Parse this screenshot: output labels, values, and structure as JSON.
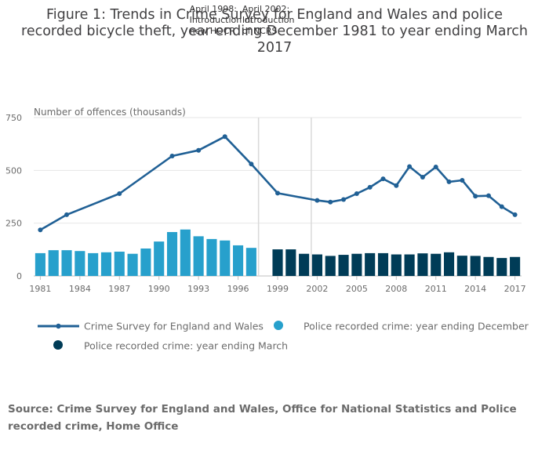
{
  "title_lines": [
    "Figure 1: Trends in Crime Survey for England and Wales and police",
    "recorded bicycle theft, year ending December 1981 to year ending March",
    "2017"
  ],
  "annotations": [
    {
      "year": 1998,
      "lines": [
        "April 1998:",
        "Introduction of",
        "new HOCR"
      ]
    },
    {
      "year": 2002,
      "lines": [
        "April 2002:",
        "Introduction",
        "of NCRS"
      ]
    }
  ],
  "source_text": "Source: Crime Survey for England and Wales, Office for National Statistics and Police recorded crime, Home Office",
  "colors": {
    "csew": "#206095",
    "december": "#27a0cc",
    "march": "#003c57",
    "grid": "#e6e6e6",
    "vline": "#d9d9d9"
  },
  "chart_data": {
    "type": "bar",
    "title": "Figure 1: Trends in Crime Survey for England and Wales and police recorded bicycle theft, year ending December 1981 to year ending March 2017",
    "ylabel": "Number of offences (thousands)",
    "ylim": [
      0,
      750
    ],
    "yticks": [
      0,
      250,
      500,
      750
    ],
    "xlim": [
      1981,
      2017
    ],
    "xticks": [
      1981,
      1984,
      1987,
      1990,
      1993,
      1996,
      1999,
      2002,
      2005,
      2008,
      2011,
      2014,
      2017
    ],
    "legend_position": "bottom",
    "series": [
      {
        "name": "Crime Survey for England and Wales",
        "kind": "line",
        "x": [
          1981,
          1983,
          1987,
          1991,
          1993,
          1995,
          1997,
          1999,
          2002,
          2003,
          2004,
          2005,
          2006,
          2007,
          2008,
          2009,
          2010,
          2011,
          2012,
          2013,
          2014,
          2015,
          2016,
          2017
        ],
        "values": [
          218,
          290,
          390,
          568,
          595,
          660,
          530,
          392,
          358,
          350,
          362,
          390,
          420,
          460,
          428,
          518,
          468,
          516,
          446,
          453,
          378,
          380,
          328,
          290
        ]
      },
      {
        "name": "Police recorded crime: year ending December",
        "kind": "bar",
        "x": [
          1981,
          1982,
          1983,
          1984,
          1985,
          1986,
          1987,
          1988,
          1989,
          1990,
          1991,
          1992,
          1993,
          1994,
          1995,
          1996,
          1997
        ],
        "values": [
          108,
          122,
          122,
          118,
          108,
          112,
          115,
          105,
          130,
          163,
          208,
          220,
          188,
          175,
          168,
          145,
          133
        ]
      },
      {
        "name": "Police recorded crime: year ending March",
        "kind": "bar",
        "x": [
          1999,
          2000,
          2001,
          2002,
          2003,
          2004,
          2005,
          2006,
          2007,
          2008,
          2009,
          2010,
          2011,
          2012,
          2013,
          2014,
          2015,
          2016,
          2017
        ],
        "values": [
          126,
          126,
          105,
          102,
          95,
          100,
          105,
          108,
          108,
          102,
          102,
          107,
          105,
          112,
          96,
          95,
          90,
          85,
          90
        ]
      }
    ]
  }
}
